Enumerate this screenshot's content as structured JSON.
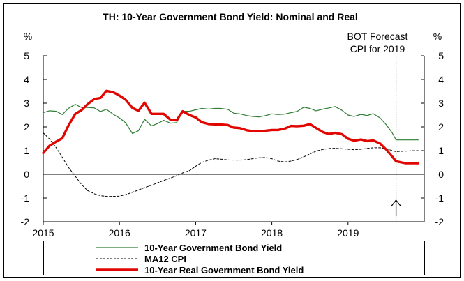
{
  "chart_data": {
    "type": "line",
    "title": "TH: 10-Year Government Bond Yield: Nominal and Real",
    "y_unit_left": "%",
    "y_unit_right": "%",
    "ylim": [
      -2,
      5
    ],
    "yticks": [
      -2,
      -1,
      0,
      1,
      2,
      3,
      4,
      5
    ],
    "ytick_labels": [
      "-2",
      "-1",
      "0",
      "1",
      "2",
      "3",
      "4",
      "5"
    ],
    "xlim": [
      2015.0,
      2020.0
    ],
    "xticks": [
      2015,
      2016,
      2017,
      2018,
      2019
    ],
    "xtick_labels": [
      "2015",
      "2016",
      "2017",
      "2018",
      "2019"
    ],
    "grid": false,
    "legend_position": "bottom",
    "annotation": {
      "line1": "BOT Forecast",
      "line2": "CPI for 2019",
      "x": 2019.63
    },
    "series": [
      {
        "name": "10-Year Government Bond Yield",
        "color": "#2e7d32",
        "style": "solid",
        "width": 1.2,
        "points": [
          [
            2015.0,
            2.6
          ],
          [
            2015.08,
            2.68
          ],
          [
            2015.17,
            2.66
          ],
          [
            2015.25,
            2.52
          ],
          [
            2015.33,
            2.78
          ],
          [
            2015.42,
            2.95
          ],
          [
            2015.5,
            2.82
          ],
          [
            2015.58,
            2.82
          ],
          [
            2015.67,
            2.8
          ],
          [
            2015.75,
            2.65
          ],
          [
            2015.83,
            2.74
          ],
          [
            2015.92,
            2.53
          ],
          [
            2016.0,
            2.38
          ],
          [
            2016.08,
            2.18
          ],
          [
            2016.17,
            1.72
          ],
          [
            2016.25,
            1.84
          ],
          [
            2016.33,
            2.32
          ],
          [
            2016.42,
            2.04
          ],
          [
            2016.5,
            2.14
          ],
          [
            2016.58,
            2.28
          ],
          [
            2016.67,
            2.16
          ],
          [
            2016.75,
            2.18
          ],
          [
            2016.83,
            2.66
          ],
          [
            2016.92,
            2.66
          ],
          [
            2017.0,
            2.72
          ],
          [
            2017.08,
            2.78
          ],
          [
            2017.17,
            2.75
          ],
          [
            2017.25,
            2.78
          ],
          [
            2017.33,
            2.78
          ],
          [
            2017.42,
            2.74
          ],
          [
            2017.5,
            2.58
          ],
          [
            2017.58,
            2.55
          ],
          [
            2017.67,
            2.48
          ],
          [
            2017.75,
            2.44
          ],
          [
            2017.83,
            2.42
          ],
          [
            2017.92,
            2.48
          ],
          [
            2018.0,
            2.55
          ],
          [
            2018.08,
            2.52
          ],
          [
            2018.17,
            2.54
          ],
          [
            2018.25,
            2.6
          ],
          [
            2018.33,
            2.65
          ],
          [
            2018.42,
            2.83
          ],
          [
            2018.5,
            2.78
          ],
          [
            2018.58,
            2.68
          ],
          [
            2018.67,
            2.75
          ],
          [
            2018.75,
            2.8
          ],
          [
            2018.83,
            2.86
          ],
          [
            2018.92,
            2.7
          ],
          [
            2019.0,
            2.5
          ],
          [
            2019.08,
            2.44
          ],
          [
            2019.17,
            2.53
          ],
          [
            2019.25,
            2.48
          ],
          [
            2019.33,
            2.56
          ],
          [
            2019.42,
            2.38
          ],
          [
            2019.5,
            2.1
          ],
          [
            2019.58,
            1.75
          ],
          [
            2019.63,
            1.45
          ],
          [
            2019.75,
            1.45
          ],
          [
            2019.88,
            1.45
          ],
          [
            2019.92,
            1.45
          ]
        ]
      },
      {
        "name": "MA12 CPI",
        "color": "#000000",
        "style": "dashed",
        "width": 1.0,
        "points": [
          [
            2015.0,
            1.75
          ],
          [
            2015.08,
            1.5
          ],
          [
            2015.17,
            1.12
          ],
          [
            2015.25,
            0.72
          ],
          [
            2015.33,
            0.3
          ],
          [
            2015.42,
            -0.08
          ],
          [
            2015.5,
            -0.42
          ],
          [
            2015.58,
            -0.68
          ],
          [
            2015.67,
            -0.82
          ],
          [
            2015.75,
            -0.9
          ],
          [
            2015.83,
            -0.93
          ],
          [
            2015.92,
            -0.93
          ],
          [
            2016.0,
            -0.92
          ],
          [
            2016.08,
            -0.86
          ],
          [
            2016.17,
            -0.76
          ],
          [
            2016.25,
            -0.66
          ],
          [
            2016.33,
            -0.56
          ],
          [
            2016.42,
            -0.46
          ],
          [
            2016.5,
            -0.36
          ],
          [
            2016.58,
            -0.26
          ],
          [
            2016.67,
            -0.16
          ],
          [
            2016.75,
            -0.06
          ],
          [
            2016.83,
            0.06
          ],
          [
            2016.92,
            0.16
          ],
          [
            2017.0,
            0.34
          ],
          [
            2017.08,
            0.5
          ],
          [
            2017.17,
            0.6
          ],
          [
            2017.25,
            0.66
          ],
          [
            2017.33,
            0.64
          ],
          [
            2017.42,
            0.61
          ],
          [
            2017.5,
            0.6
          ],
          [
            2017.58,
            0.6
          ],
          [
            2017.67,
            0.62
          ],
          [
            2017.75,
            0.66
          ],
          [
            2017.83,
            0.7
          ],
          [
            2017.92,
            0.71
          ],
          [
            2018.0,
            0.66
          ],
          [
            2018.08,
            0.56
          ],
          [
            2018.17,
            0.52
          ],
          [
            2018.25,
            0.56
          ],
          [
            2018.33,
            0.62
          ],
          [
            2018.42,
            0.74
          ],
          [
            2018.5,
            0.86
          ],
          [
            2018.58,
            0.98
          ],
          [
            2018.67,
            1.05
          ],
          [
            2018.75,
            1.09
          ],
          [
            2018.83,
            1.1
          ],
          [
            2018.92,
            1.08
          ],
          [
            2019.0,
            1.06
          ],
          [
            2019.08,
            1.04
          ],
          [
            2019.17,
            1.06
          ],
          [
            2019.25,
            1.09
          ],
          [
            2019.33,
            1.12
          ],
          [
            2019.42,
            1.12
          ],
          [
            2019.5,
            1.08
          ],
          [
            2019.58,
            1.0
          ],
          [
            2019.63,
            0.96
          ],
          [
            2019.75,
            0.98
          ],
          [
            2019.88,
            1.0
          ],
          [
            2019.92,
            1.0
          ]
        ]
      },
      {
        "name": "10-Year Real Government Bond Yield",
        "color": "#e10600",
        "style": "solid",
        "width": 3.4,
        "points": [
          [
            2015.0,
            0.9
          ],
          [
            2015.08,
            1.2
          ],
          [
            2015.17,
            1.38
          ],
          [
            2015.25,
            1.52
          ],
          [
            2015.33,
            2.05
          ],
          [
            2015.42,
            2.55
          ],
          [
            2015.5,
            2.7
          ],
          [
            2015.58,
            2.95
          ],
          [
            2015.67,
            3.18
          ],
          [
            2015.75,
            3.22
          ],
          [
            2015.83,
            3.52
          ],
          [
            2015.92,
            3.46
          ],
          [
            2016.0,
            3.32
          ],
          [
            2016.08,
            3.15
          ],
          [
            2016.17,
            2.8
          ],
          [
            2016.25,
            2.68
          ],
          [
            2016.33,
            3.02
          ],
          [
            2016.42,
            2.55
          ],
          [
            2016.5,
            2.55
          ],
          [
            2016.58,
            2.55
          ],
          [
            2016.67,
            2.3
          ],
          [
            2016.75,
            2.28
          ],
          [
            2016.83,
            2.66
          ],
          [
            2016.92,
            2.5
          ],
          [
            2017.0,
            2.4
          ],
          [
            2017.08,
            2.2
          ],
          [
            2017.17,
            2.12
          ],
          [
            2017.25,
            2.11
          ],
          [
            2017.33,
            2.1
          ],
          [
            2017.42,
            2.08
          ],
          [
            2017.5,
            1.97
          ],
          [
            2017.58,
            1.95
          ],
          [
            2017.67,
            1.86
          ],
          [
            2017.75,
            1.82
          ],
          [
            2017.83,
            1.82
          ],
          [
            2017.92,
            1.84
          ],
          [
            2018.0,
            1.87
          ],
          [
            2018.08,
            1.87
          ],
          [
            2018.17,
            1.93
          ],
          [
            2018.25,
            2.04
          ],
          [
            2018.33,
            2.03
          ],
          [
            2018.42,
            2.05
          ],
          [
            2018.5,
            2.12
          ],
          [
            2018.58,
            1.96
          ],
          [
            2018.67,
            1.78
          ],
          [
            2018.75,
            1.7
          ],
          [
            2018.83,
            1.75
          ],
          [
            2018.92,
            1.69
          ],
          [
            2019.0,
            1.5
          ],
          [
            2019.08,
            1.42
          ],
          [
            2019.17,
            1.47
          ],
          [
            2019.25,
            1.4
          ],
          [
            2019.33,
            1.43
          ],
          [
            2019.42,
            1.3
          ],
          [
            2019.5,
            1.05
          ],
          [
            2019.58,
            0.75
          ],
          [
            2019.63,
            0.55
          ],
          [
            2019.75,
            0.47
          ],
          [
            2019.88,
            0.47
          ],
          [
            2019.92,
            0.47
          ]
        ]
      }
    ]
  }
}
